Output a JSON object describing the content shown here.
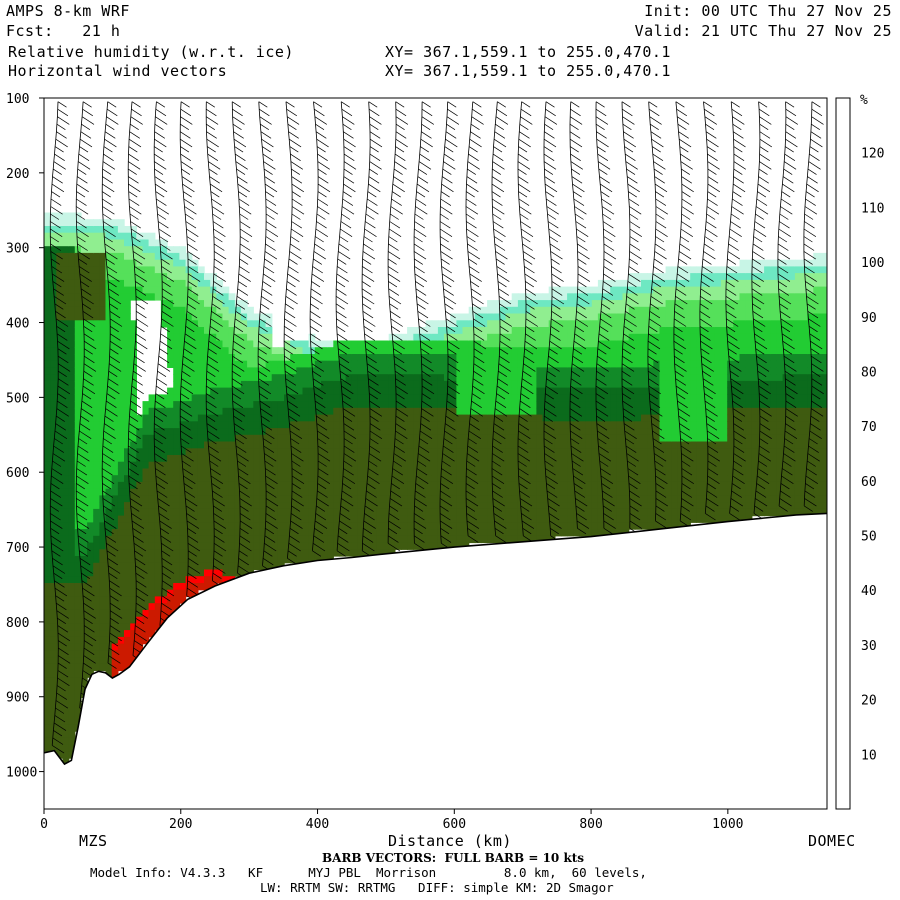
{
  "header": {
    "model": "AMPS 8-km WRF",
    "forecast": "Fcst:   21 h",
    "field1": "Relative humidity (w.r.t. ice)",
    "field2": "Horizontal wind vectors",
    "xy1": "XY= 367.1,559.1 to 255.0,470.1",
    "xy2": "XY= 367.1,559.1 to 255.0,470.1",
    "init": "Init: 00 UTC Thu 27 Nov 25",
    "valid": "Valid: 21 UTC Thu 27 Nov 25"
  },
  "footer": {
    "barb_note": "BARB VECTORS:  FULL BARB = 10 kts",
    "model_info": "Model Info: V4.3.3   KF      MYJ PBL  Morrison         8.0 km,  60 levels,",
    "physics": "LW: RRTM SW: RRTMG   DIFF: simple KM: 2D Smagor"
  },
  "chart_data": {
    "type": "heatmap",
    "xlabel": "Distance (km)",
    "ylabel": "",
    "xlim": [
      0,
      1145
    ],
    "ylim": [
      1050,
      100
    ],
    "x_ticks": [
      0,
      200,
      400,
      600,
      800,
      1000
    ],
    "y_ticks": [
      100,
      200,
      300,
      400,
      500,
      600,
      700,
      800,
      900,
      1000
    ],
    "x_end_labels": {
      "left": "MZS",
      "right": "DOMEC"
    },
    "colorbar": {
      "unit": "%",
      "levels": [
        10,
        20,
        30,
        40,
        50,
        60,
        70,
        80,
        90,
        100,
        110,
        120
      ],
      "colors": [
        "#ffffff",
        "#ffffff",
        "#ffffff",
        "#c8f5e6",
        "#6ee8c2",
        "#90ee90",
        "#55e05a",
        "#22cc33",
        "#128a28",
        "#0b6b1c",
        "#3f5b10",
        "#cc1a00",
        "#ff0000"
      ]
    },
    "terrain_pressure": {
      "x": [
        0,
        15,
        30,
        40,
        50,
        60,
        70,
        80,
        90,
        100,
        110,
        125,
        150,
        180,
        210,
        250,
        300,
        350,
        400,
        450,
        500,
        600,
        700,
        800,
        900,
        1000,
        1100,
        1145
      ],
      "p": [
        975,
        972,
        990,
        985,
        940,
        890,
        870,
        866,
        868,
        875,
        870,
        860,
        830,
        795,
        770,
        752,
        735,
        725,
        718,
        714,
        709,
        700,
        693,
        686,
        676,
        666,
        657,
        655
      ]
    },
    "humidity_regions": [
      {
        "name": "lower-troposphere",
        "level": 100,
        "x_from": 60,
        "x_to": 1145,
        "p_top": [
          660,
          500,
          470,
          450,
          420,
          420,
          430,
          440,
          440,
          430,
          420
        ],
        "p_x": [
          60,
          150,
          250,
          350,
          450,
          550,
          650,
          750,
          850,
          950,
          1145
        ]
      },
      {
        "name": "upper-cloud",
        "level": 60,
        "x_from": 0,
        "x_to": 1145,
        "p_top": [
          255,
          260,
          300,
          380,
          420,
          420,
          390,
          360,
          350,
          330,
          310
        ],
        "p_x": [
          0,
          100,
          200,
          300,
          400,
          500,
          600,
          700,
          800,
          900,
          1145
        ]
      },
      {
        "name": "red-core",
        "level": 120,
        "x_from": 100,
        "x_to": 300,
        "p_top": [
          830,
          780,
          745,
          730,
          745
        ],
        "p_x": [
          100,
          150,
          200,
          250,
          300
        ]
      }
    ]
  }
}
